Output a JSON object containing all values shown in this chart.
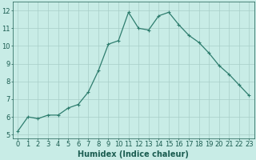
{
  "x": [
    0,
    1,
    2,
    3,
    4,
    5,
    6,
    7,
    8,
    9,
    10,
    11,
    12,
    13,
    14,
    15,
    16,
    17,
    18,
    19,
    20,
    21,
    22,
    23
  ],
  "y": [
    5.2,
    6.0,
    5.9,
    6.1,
    6.1,
    6.5,
    6.7,
    7.4,
    8.6,
    10.1,
    10.3,
    11.9,
    11.0,
    10.9,
    11.7,
    11.9,
    11.2,
    10.6,
    10.2,
    9.6,
    8.9,
    8.4,
    7.8,
    7.2
  ],
  "line_color": "#2e7d6e",
  "marker": "+",
  "marker_size": 3,
  "marker_lw": 0.8,
  "bg_color": "#c8ece6",
  "grid_color": "#a8cfc8",
  "xlabel": "Humidex (Indice chaleur)",
  "xlim": [
    -0.5,
    23.5
  ],
  "ylim": [
    4.8,
    12.5
  ],
  "yticks": [
    5,
    6,
    7,
    8,
    9,
    10,
    11,
    12
  ],
  "xticks": [
    0,
    1,
    2,
    3,
    4,
    5,
    6,
    7,
    8,
    9,
    10,
    11,
    12,
    13,
    14,
    15,
    16,
    17,
    18,
    19,
    20,
    21,
    22,
    23
  ],
  "tick_color": "#1a5c50",
  "label_color": "#1a5c50",
  "axis_color": "#1a5c50",
  "font_size": 6,
  "xlabel_fontsize": 7,
  "line_width": 0.9
}
